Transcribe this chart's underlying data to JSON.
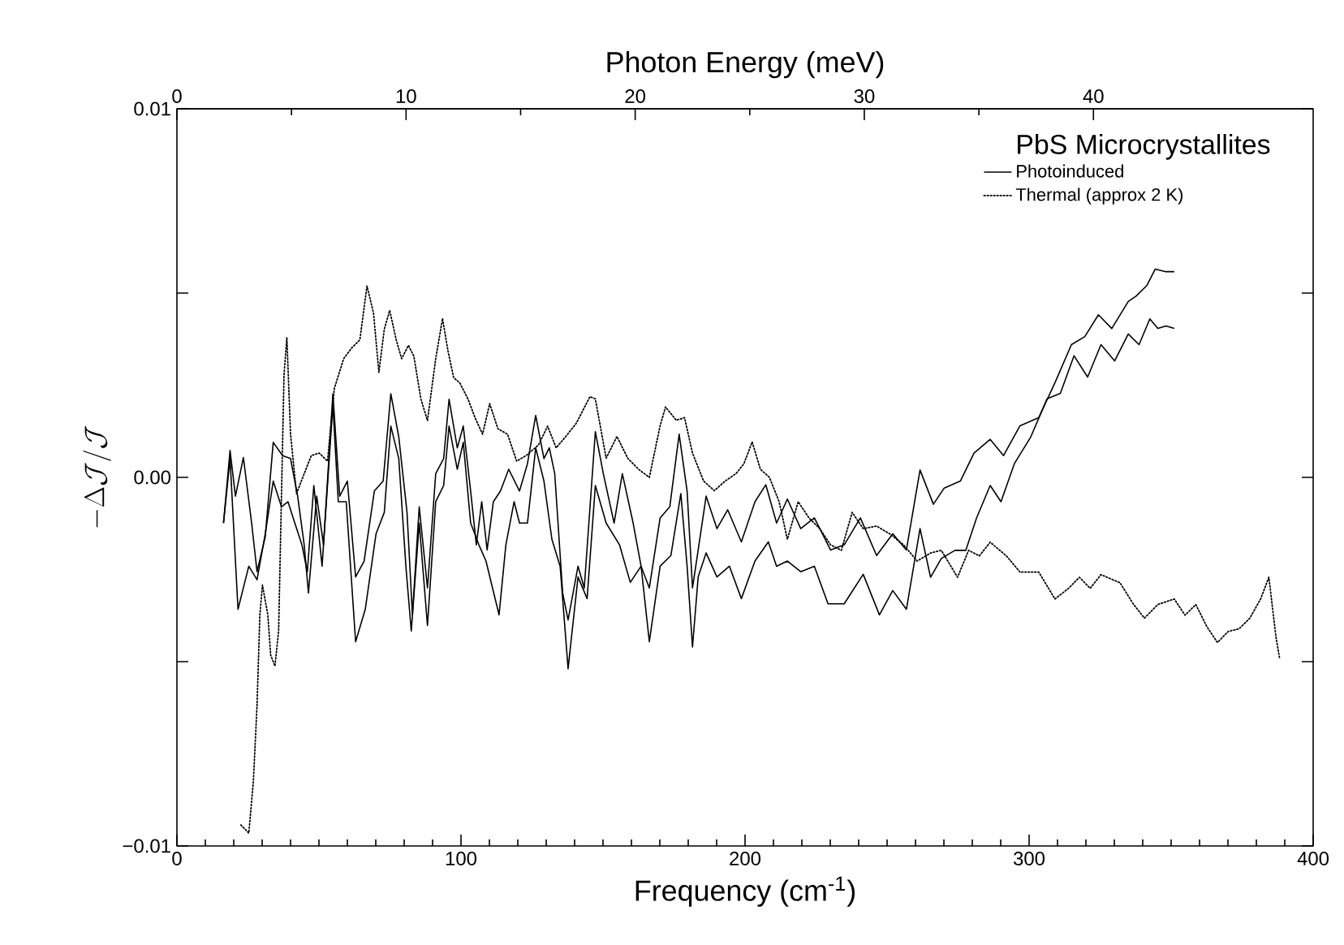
{
  "chart_data": {
    "type": "line",
    "xlabel": "Frequency (cm$^{-1}$)",
    "ylabel": "-\\Delta\\mathcal{J}/\\mathcal{J}",
    "x2label": "Photon Energy (meV)",
    "legend_title": "PbS Microcrystallites",
    "xlim": [
      0,
      400
    ],
    "xticks": [
      0,
      100,
      200,
      300,
      400
    ],
    "x2lim": [
      0,
      49.59
    ],
    "x2ticks": [
      0,
      10,
      20,
      30,
      40
    ],
    "ylim": [
      -0.01,
      0.01
    ],
    "yticks": [
      {
        "value": -0.01,
        "label": "−0.01"
      },
      {
        "value": -0.005,
        "label": null
      },
      {
        "value": 0,
        "label": "0.00"
      },
      {
        "value": 0.005,
        "label": null
      },
      {
        "value": 0.01,
        "label": "0.01"
      }
    ],
    "legend": "top right",
    "marker": "none",
    "series": [
      {
        "name": "Photoinduced",
        "color": "#000000",
        "line_style": "solid",
        "x": [
          16.4,
          18.7,
          20.6,
          23.4,
          26.3,
          28.2,
          31.1,
          33.9,
          37.2,
          40.0,
          42.5,
          44.8,
          46.3,
          49.2,
          51.6,
          54.9,
          57.3,
          60.0,
          62.9,
          65.9,
          69.5,
          72.6,
          75.3,
          78.1,
          81.0,
          82.9,
          85.3,
          88.2,
          91.1,
          93.9,
          95.8,
          98.7,
          100.8,
          103.4,
          105.4,
          107.3,
          109.2,
          111.4,
          113.9,
          116.8,
          120.6,
          123.4,
          126.3,
          129.2,
          131.1,
          133.0,
          135.8,
          137.7,
          141.2,
          143.4,
          147.3,
          150.1,
          153.9,
          156.8,
          160.6,
          163.4,
          166.3,
          170.1,
          173.5,
          176.8,
          179.6,
          181.5,
          183.5,
          186.3,
          190.1,
          193.9,
          198.7,
          203.5,
          207.3,
          211.1,
          214.9,
          219.6,
          224.4,
          230.1,
          234.9,
          240.6,
          246.3,
          252.0,
          256.8,
          261.6,
          266.3,
          270.1,
          275.8,
          280.6,
          286.3,
          291.0,
          296.8,
          303.4,
          309.1,
          314.9,
          319.6,
          324.4,
          329.1,
          334.9,
          337.7,
          341.5,
          344.4,
          348.2,
          351.1
        ],
        "values": [
          -0.00124,
          0.00073,
          -0.00051,
          0.00054,
          -0.00124,
          -0.00256,
          -0.00161,
          0.00095,
          0.00059,
          0.00051,
          -0.00051,
          -0.00183,
          -0.00314,
          -0.00051,
          -0.00183,
          0.00227,
          -0.00051,
          -0.0001,
          -0.0027,
          -0.00227,
          -0.00037,
          -0.0001,
          0.00227,
          0.0011,
          -0.00095,
          -0.00373,
          -0.0008,
          -0.003,
          0.0001,
          0.00051,
          0.00212,
          0.0008,
          0.00139,
          -0.00037,
          -0.00183,
          -0.00066,
          -0.00197,
          -0.00066,
          -0.00037,
          0.00022,
          -0.00037,
          0.00037,
          0.00168,
          0.00051,
          0.0008,
          0.0001,
          -0.00314,
          -0.00387,
          -0.00241,
          -0.003,
          0.00124,
          0.0001,
          -0.00124,
          0.0001,
          -0.00124,
          -0.00241,
          -0.003,
          -0.0011,
          -0.0008,
          0.00117,
          -0.00037,
          -0.003,
          -0.00197,
          -0.00051,
          -0.00139,
          -0.00088,
          -0.00175,
          -0.00066,
          -0.0002,
          -0.00124,
          -0.00059,
          -0.00139,
          -0.0011,
          -0.00197,
          -0.00183,
          -0.0011,
          -0.00212,
          -0.00153,
          -0.00197,
          0.0002,
          -0.00073,
          -0.00029,
          -0.0001,
          0.00066,
          0.00103,
          0.00059,
          0.0014,
          0.00162,
          0.00257,
          0.0036,
          0.00382,
          0.00441,
          0.00404,
          0.00477,
          0.00492,
          0.00521,
          0.00565,
          0.00558,
          0.00558
        ]
      },
      {
        "name": "Thermal (approx 2 K)",
        "color": "#000000",
        "line_style": "dotted",
        "x": [
          22.5,
          25.3,
          26.9,
          28.2,
          29.2,
          30.1,
          32.0,
          33.0,
          34.5,
          35.8,
          37.7,
          38.7,
          40.0,
          42.1,
          44.8,
          47.3,
          50.1,
          53.0,
          55.4,
          58.7,
          61.5,
          64.4,
          66.9,
          69.2,
          71.1,
          73.0,
          74.9,
          77.2,
          79.1,
          81.5,
          83.4,
          85.9,
          88.2,
          91.1,
          93.5,
          95.4,
          97.4,
          99.6,
          102.5,
          105.0,
          107.6,
          110.1,
          113.0,
          116.4,
          119.6,
          122.9,
          127.3,
          130.5,
          133.5,
          136.8,
          140.6,
          145.4,
          147.3,
          151.1,
          154.9,
          158.7,
          162.5,
          166.3,
          170.1,
          172.0,
          175.8,
          178.7,
          181.5,
          185.4,
          189.2,
          193.0,
          196.8,
          199.6,
          202.5,
          205.4,
          208.6,
          212.0,
          214.9,
          218.7,
          222.5,
          226.3,
          230.1,
          233.9,
          237.7,
          241.6,
          246.3,
          251.1,
          255.8,
          260.6,
          265.4,
          269.1,
          274.8,
          278.7,
          282.5,
          286.3,
          292.0,
          296.8,
          303.4,
          309.1,
          313.9,
          317.7,
          321.5,
          325.3,
          332.0,
          336.8,
          340.6,
          345.3,
          351.1,
          354.9,
          358.7,
          362.5,
          366.3,
          370.1,
          373.9,
          377.7,
          381.5,
          384.4,
          386.9,
          388.2
        ],
        "values": [
          -0.00943,
          -0.00965,
          -0.00826,
          -0.00618,
          -0.00373,
          -0.00292,
          -0.00373,
          -0.00482,
          -0.00512,
          -0.00417,
          0.00278,
          0.0038,
          0.00117,
          -0.00044,
          0.0001,
          0.00059,
          0.00066,
          0.00044,
          0.00241,
          0.00322,
          0.00351,
          0.00373,
          0.00519,
          0.00446,
          0.00285,
          0.00402,
          0.00453,
          0.00373,
          0.00322,
          0.00358,
          0.00329,
          0.00212,
          0.00154,
          0.00322,
          0.00431,
          0.00344,
          0.00271,
          0.00256,
          0.00212,
          0.00161,
          0.00117,
          0.002,
          0.00132,
          0.00117,
          0.00044,
          0.00059,
          0.00088,
          0.00139,
          0.0008,
          0.0011,
          0.00147,
          0.00219,
          0.00213,
          0.00052,
          0.00111,
          0.00052,
          0.00022,
          0.0,
          0.0014,
          0.00191,
          0.00155,
          0.00162,
          0.00066,
          -0.0001,
          -0.00036,
          -0.0001,
          0.0001,
          0.00037,
          0.00096,
          0.00022,
          0.0,
          -0.00066,
          -0.00168,
          -0.00066,
          -0.0011,
          -0.00139,
          -0.00183,
          -0.00198,
          -0.00095,
          -0.00139,
          -0.00132,
          -0.00154,
          -0.00183,
          -0.00227,
          -0.00205,
          -0.00198,
          -0.00271,
          -0.00198,
          -0.00213,
          -0.00176,
          -0.00213,
          -0.00257,
          -0.00257,
          -0.0033,
          -0.00301,
          -0.00271,
          -0.00301,
          -0.00264,
          -0.00286,
          -0.00345,
          -0.00382,
          -0.00345,
          -0.0033,
          -0.00374,
          -0.00345,
          -0.00404,
          -0.00448,
          -0.00418,
          -0.00411,
          -0.00382,
          -0.0033,
          -0.00271,
          -0.00433,
          -0.00492
        ]
      },
      {
        "color": "#000000",
        "line_style": "solid",
        "x": [
          16.4,
          18.7,
          21.5,
          25.3,
          28.2,
          31.1,
          33.9,
          36.8,
          39.1,
          41.5,
          44.0,
          45.9,
          48.2,
          51.1,
          54.9,
          56.8,
          59.6,
          62.9,
          66.3,
          70.1,
          73.0,
          75.3,
          78.1,
          80.6,
          82.5,
          85.3,
          88.2,
          91.1,
          93.9,
          95.8,
          98.7,
          100.8,
          103.4,
          106.3,
          108.8,
          111.1,
          113.4,
          115.8,
          118.7,
          120.6,
          123.4,
          126.3,
          129.2,
          132.0,
          134.9,
          137.7,
          141.2,
          144.4,
          147.3,
          151.1,
          155.8,
          159.6,
          163.4,
          166.3,
          170.1,
          173.9,
          177.4,
          179.6,
          181.5,
          183.5,
          186.3,
          190.1,
          194.5,
          198.7,
          203.5,
          208.2,
          211.1,
          214.9,
          219.6,
          224.4,
          229.2,
          234.9,
          241.6,
          247.3,
          252.0,
          256.8,
          261.6,
          265.3,
          269.1,
          273.9,
          277.7,
          281.5,
          286.3,
          290.1,
          294.8,
          300.6,
          306.3,
          311.0,
          315.8,
          320.6,
          325.3,
          330.1,
          334.9,
          338.7,
          342.5,
          345.3,
          348.2,
          351.1
        ],
        "values": [
          -0.00124,
          0.00051,
          -0.00358,
          -0.00241,
          -0.00278,
          -0.00153,
          -0.0001,
          -0.0008,
          -0.00066,
          -0.00124,
          -0.00183,
          -0.00256,
          -0.00022,
          -0.00241,
          0.00197,
          -0.00066,
          -0.00066,
          -0.00446,
          -0.00358,
          -0.00153,
          -0.00095,
          0.00139,
          0.00051,
          -0.00241,
          -0.00417,
          -0.00124,
          -0.00402,
          -0.00066,
          -0.00022,
          0.00139,
          0.00022,
          0.00095,
          -0.00124,
          -0.00183,
          -0.00227,
          -0.003,
          -0.00373,
          -0.00183,
          -0.00066,
          -0.00124,
          -0.00124,
          0.0008,
          -0.0001,
          -0.00168,
          -0.00241,
          -0.00519,
          -0.0027,
          -0.00329,
          -0.00022,
          -0.00124,
          -0.00183,
          -0.00285,
          -0.00241,
          -0.00446,
          -0.00241,
          -0.00212,
          -0.00044,
          -0.00241,
          -0.0046,
          -0.0027,
          -0.00205,
          -0.0027,
          -0.00241,
          -0.00329,
          -0.00227,
          -0.00175,
          -0.00241,
          -0.00227,
          -0.00256,
          -0.00241,
          -0.00343,
          -0.00343,
          -0.00263,
          -0.00373,
          -0.00307,
          -0.00358,
          -0.00139,
          -0.00271,
          -0.0022,
          -0.00198,
          -0.00198,
          -0.0011,
          -0.00022,
          -0.00066,
          0.00037,
          0.0011,
          0.00213,
          0.00228,
          0.0033,
          0.00272,
          0.0036,
          0.00316,
          0.00389,
          0.0036,
          0.0043,
          0.00404,
          0.00411,
          0.00404
        ]
      }
    ]
  }
}
